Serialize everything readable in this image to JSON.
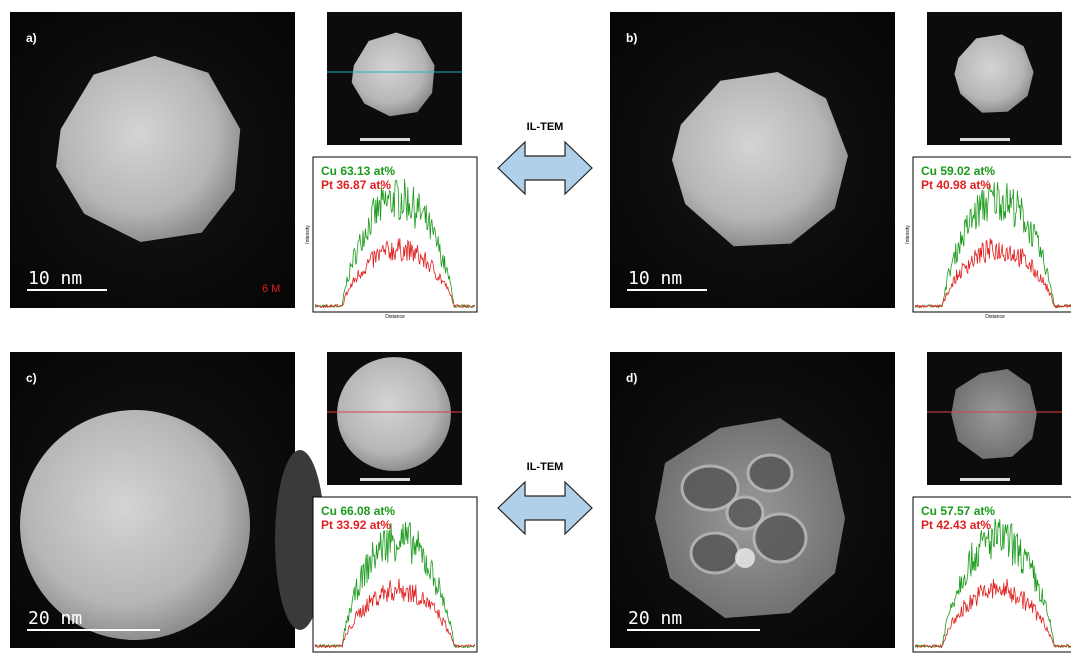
{
  "panels": [
    {
      "label": "a)",
      "scale_bar": "10 nm",
      "magnification": "6 M",
      "cu": "Cu 63.13 at%",
      "pt": "Pt 36.87 at%",
      "x_axis": "Distance",
      "y_axis": "Intensity"
    },
    {
      "label": "b)",
      "scale_bar": "10 nm",
      "cu": "Cu 59.02 at%",
      "pt": "Pt 40.98 at%",
      "x_axis": "Distance",
      "y_axis": "Intensity"
    },
    {
      "label": "c)",
      "scale_bar": "20 nm",
      "cu": "Cu 66.08 at%",
      "pt": "Pt 33.92 at%"
    },
    {
      "label": "d)",
      "scale_bar": "20 nm",
      "cu": "Cu 57.57 at%",
      "pt": "Pt 42.43 at%"
    }
  ],
  "arrows": [
    "IL-TEM",
    "IL-TEM"
  ]
}
